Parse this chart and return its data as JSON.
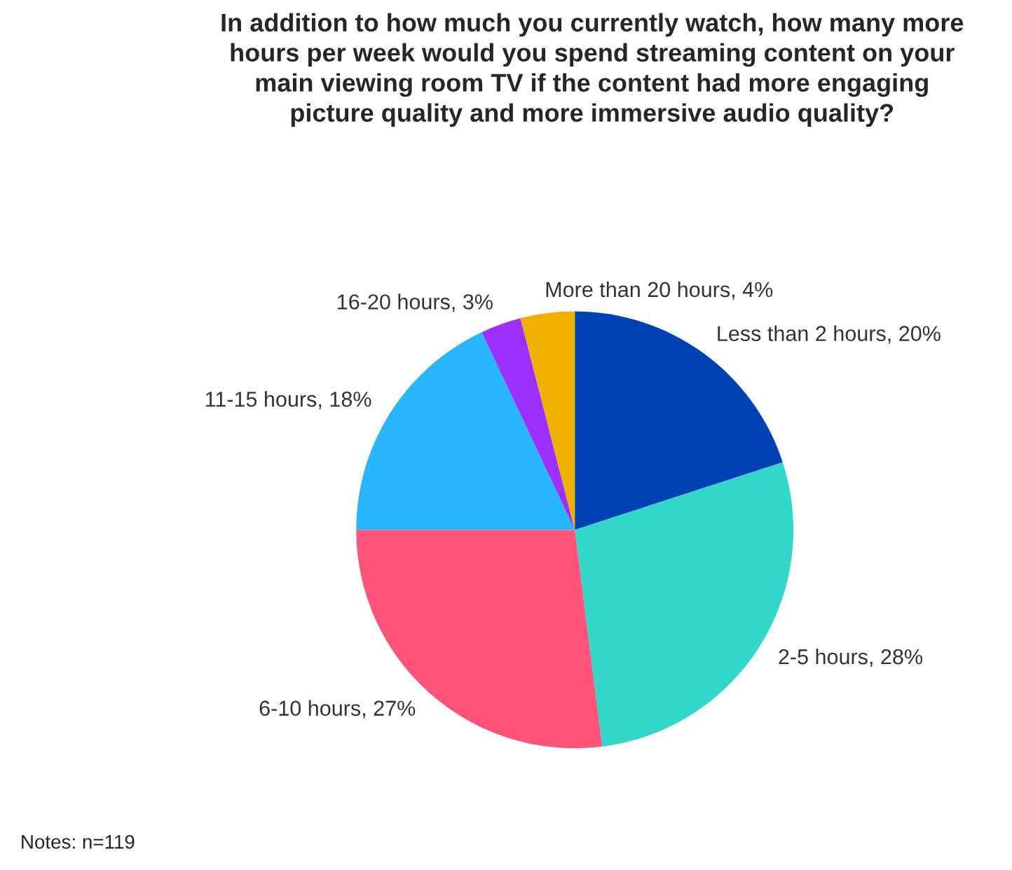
{
  "chart_data": {
    "type": "pie",
    "title": "In addition to how much you currently watch, how many more\nhours per week would you spend streaming content on your\nmain viewing room TV if the content had more engaging\npicture quality and more immersive audio quality?",
    "categories": [
      "Less than 2 hours",
      "2-5 hours",
      "6-10 hours",
      "11-15 hours",
      "16-20 hours",
      "More than 20 hours"
    ],
    "values": [
      20,
      28,
      27,
      18,
      3,
      4
    ],
    "value_labels": [
      "20%",
      "28%",
      "27%",
      "18%",
      "3%",
      "4%"
    ],
    "colors": [
      "#0041b3",
      "#33d7c9",
      "#ff5479",
      "#2ab5ff",
      "#9b30ff",
      "#f0b000"
    ],
    "legend": false,
    "annotations": [
      "Notes: n=119"
    ]
  }
}
